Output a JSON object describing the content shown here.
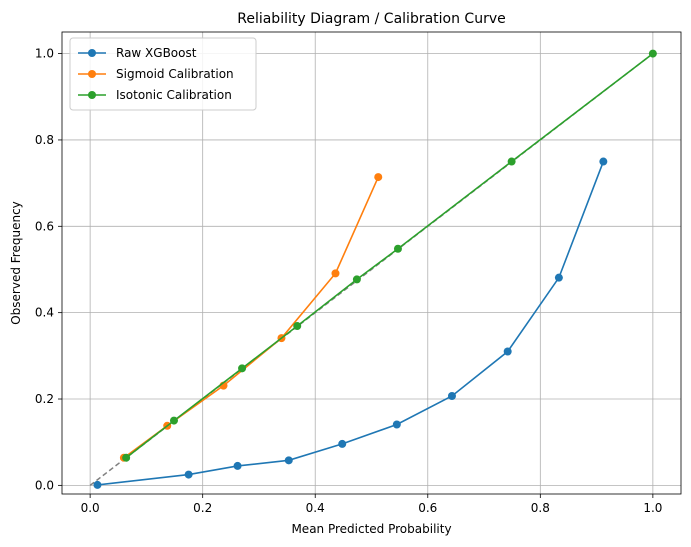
{
  "chart_data": {
    "type": "line",
    "title": "Reliability Diagram / Calibration Curve",
    "xlabel": "Mean Predicted Probability",
    "ylabel": "Observed Frequency",
    "xlim": [
      -0.05,
      1.05
    ],
    "ylim": [
      -0.02,
      1.05
    ],
    "xticks": [
      0.0,
      0.2,
      0.4,
      0.6,
      0.8,
      1.0
    ],
    "yticks": [
      0.0,
      0.2,
      0.4,
      0.6,
      0.8,
      1.0
    ],
    "xtick_labels": [
      "0.0",
      "0.2",
      "0.4",
      "0.6",
      "0.8",
      "1.0"
    ],
    "ytick_labels": [
      "0.0",
      "0.2",
      "0.4",
      "0.6",
      "0.8",
      "1.0"
    ],
    "grid": true,
    "legend_position": "top-left",
    "reference_line": {
      "x": [
        0,
        1
      ],
      "y": [
        0,
        1
      ],
      "style": "dashed",
      "color": "#808080"
    },
    "series": [
      {
        "name": "Raw XGBoost",
        "color": "#1f77b4",
        "x": [
          0.013,
          0.175,
          0.262,
          0.353,
          0.448,
          0.545,
          0.643,
          0.742,
          0.833,
          0.912
        ],
        "y": [
          0.001,
          0.025,
          0.045,
          0.058,
          0.096,
          0.141,
          0.207,
          0.31,
          0.481,
          0.75
        ]
      },
      {
        "name": "Sigmoid Calibration",
        "color": "#ff7f0e",
        "x": [
          0.06,
          0.137,
          0.237,
          0.34,
          0.436,
          0.512
        ],
        "y": [
          0.064,
          0.138,
          0.231,
          0.341,
          0.491,
          0.714
        ]
      },
      {
        "name": "Isotonic Calibration",
        "color": "#2ca02c",
        "x": [
          0.064,
          0.149,
          0.27,
          0.368,
          0.474,
          0.547,
          0.749,
          1.0
        ],
        "y": [
          0.064,
          0.15,
          0.271,
          0.369,
          0.477,
          0.548,
          0.75,
          1.0
        ]
      }
    ]
  }
}
